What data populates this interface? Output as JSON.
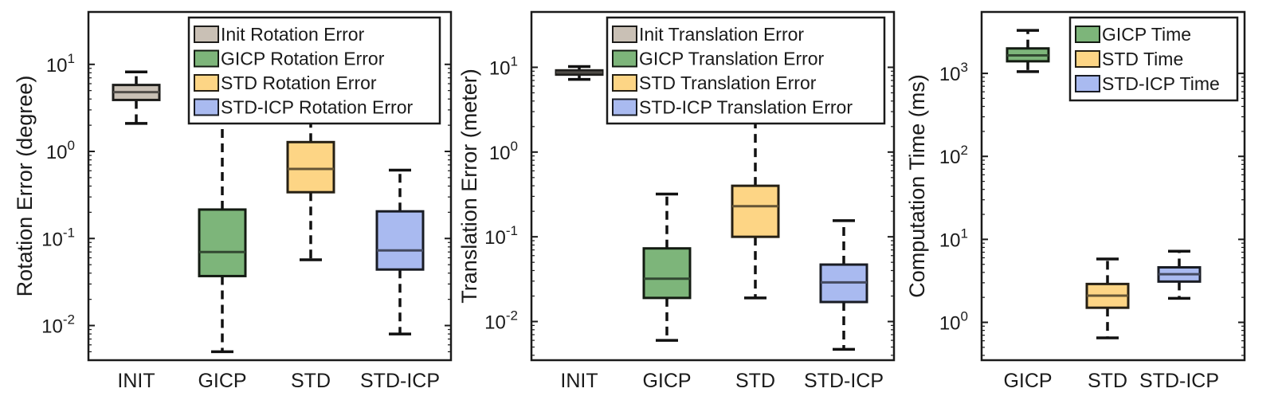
{
  "chart_data": [
    {
      "type": "boxplot",
      "scale": "log",
      "ylim": [
        0.004,
        40
      ],
      "ylabel": "Rotation Error (degree)",
      "yticks": [
        {
          "value": 0.01,
          "base": "10",
          "exp": "-2"
        },
        {
          "value": 0.1,
          "base": "10",
          "exp": "-1"
        },
        {
          "value": 1,
          "base": "10",
          "exp": "0"
        },
        {
          "value": 10,
          "base": "10",
          "exp": "1"
        }
      ],
      "categories": [
        "INIT",
        "GICP",
        "STD",
        "STD-ICP"
      ],
      "boxes": [
        {
          "category": "INIT",
          "color": "#c9c0b5",
          "whisker_low": 2.1,
          "q1": 3.9,
          "median": 4.8,
          "q3": 5.8,
          "whisker_high": 8.2
        },
        {
          "category": "GICP",
          "color": "#7db57a",
          "whisker_low": 0.005,
          "q1": 0.037,
          "median": 0.07,
          "q3": 0.215,
          "whisker_high": 3.5
        },
        {
          "category": "STD",
          "color": "#fdd585",
          "whisker_low": 0.057,
          "q1": 0.34,
          "median": 0.63,
          "q3": 1.28,
          "whisker_high": 2.2
        },
        {
          "category": "STD-ICP",
          "color": "#a9baf0",
          "whisker_low": 0.008,
          "q1": 0.044,
          "median": 0.073,
          "q3": 0.205,
          "whisker_high": 0.61
        }
      ],
      "legend": [
        {
          "label": "Init Rotation Error",
          "color": "#c9c0b5"
        },
        {
          "label": "GICP Rotation Error",
          "color": "#7db57a"
        },
        {
          "label": "STD Rotation Error",
          "color": "#fdd585"
        },
        {
          "label": "STD-ICP Rotation Error",
          "color": "#a9baf0"
        }
      ],
      "legend_placement": "top-right",
      "grid": false
    },
    {
      "type": "boxplot",
      "scale": "log",
      "ylim": [
        0.0035,
        45
      ],
      "ylabel": "Translation Error (meter)",
      "yticks": [
        {
          "value": 0.01,
          "base": "10",
          "exp": "-2"
        },
        {
          "value": 0.1,
          "base": "10",
          "exp": "-1"
        },
        {
          "value": 1,
          "base": "10",
          "exp": "0"
        },
        {
          "value": 10,
          "base": "10",
          "exp": "1"
        }
      ],
      "categories": [
        "INIT",
        "GICP",
        "STD",
        "STD-ICP"
      ],
      "boxes": [
        {
          "category": "INIT",
          "color": "#c9c0b5",
          "whisker_low": 7.2,
          "q1": 8.2,
          "median": 8.7,
          "q3": 9.2,
          "whisker_high": 10.2
        },
        {
          "category": "GICP",
          "color": "#7db57a",
          "whisker_low": 0.006,
          "q1": 0.019,
          "median": 0.032,
          "q3": 0.073,
          "whisker_high": 0.32
        },
        {
          "category": "STD",
          "color": "#fdd585",
          "whisker_low": 0.019,
          "q1": 0.1,
          "median": 0.23,
          "q3": 0.4,
          "whisker_high": 3.5
        },
        {
          "category": "STD-ICP",
          "color": "#a9baf0",
          "whisker_low": 0.0047,
          "q1": 0.017,
          "median": 0.029,
          "q3": 0.047,
          "whisker_high": 0.155
        }
      ],
      "legend": [
        {
          "label": "Init Translation Error",
          "color": "#c9c0b5"
        },
        {
          "label": "GICP Translation Error",
          "color": "#7db57a"
        },
        {
          "label": "STD Translation Error",
          "color": "#fdd585"
        },
        {
          "label": "STD-ICP Translation Error",
          "color": "#a9baf0"
        }
      ],
      "legend_placement": "top-right",
      "grid": false
    },
    {
      "type": "boxplot",
      "scale": "log",
      "ylim": [
        0.35,
        5500
      ],
      "ylabel": "Computation Time (ms)",
      "yticks": [
        {
          "value": 1,
          "base": "10",
          "exp": "0"
        },
        {
          "value": 10,
          "base": "10",
          "exp": "1"
        },
        {
          "value": 100,
          "base": "10",
          "exp": "2"
        },
        {
          "value": 1000,
          "base": "10",
          "exp": "3"
        }
      ],
      "categories": [
        "GICP",
        "STD",
        "STD-ICP"
      ],
      "boxes": [
        {
          "category": "GICP",
          "color": "#7db57a",
          "whisker_low": 1050,
          "q1": 1400,
          "median": 1650,
          "q3": 2000,
          "whisker_high": 3300
        },
        {
          "category": "STD",
          "color": "#fdd585",
          "whisker_low": 0.65,
          "q1": 1.5,
          "median": 2.1,
          "q3": 2.9,
          "whisker_high": 5.8
        },
        {
          "category": "STD-ICP",
          "color": "#a9baf0",
          "whisker_low": 1.95,
          "q1": 3.1,
          "median": 3.8,
          "q3": 4.6,
          "whisker_high": 7.2
        }
      ],
      "legend": [
        {
          "label": "GICP Time",
          "color": "#7db57a"
        },
        {
          "label": "STD Time",
          "color": "#fdd585"
        },
        {
          "label": "STD-ICP Time",
          "color": "#a9baf0"
        }
      ],
      "legend_placement": "top-right",
      "grid": false
    }
  ]
}
